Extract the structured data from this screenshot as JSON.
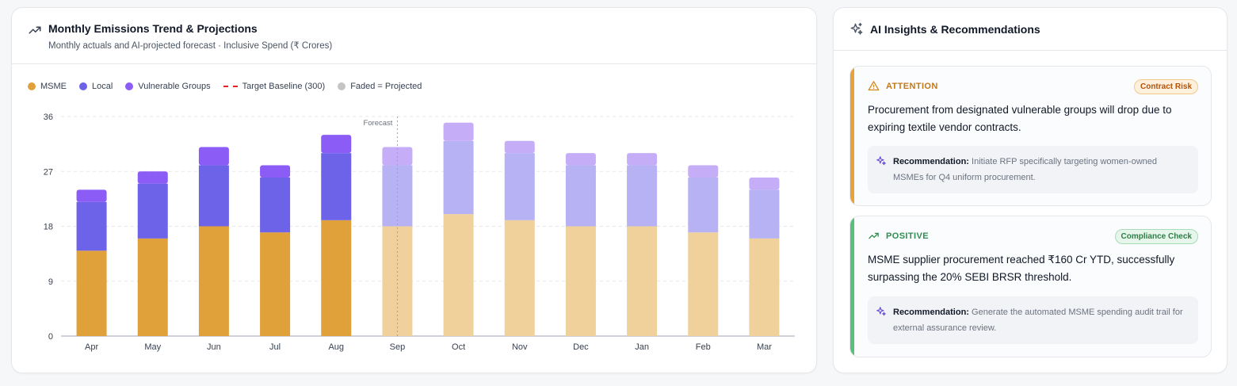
{
  "chart_card": {
    "title": "Monthly Emissions Trend & Projections",
    "subtitle": "Monthly actuals and AI-projected forecast · Inclusive Spend (₹ Crores)",
    "legend": [
      {
        "label": "MSME",
        "color": "#e0a03a"
      },
      {
        "label": "Local",
        "color": "#6d63e8"
      },
      {
        "label": "Vulnerable Groups",
        "color": "#8b5cf6"
      },
      {
        "label": "Target Baseline (300)",
        "color": "#dc2626"
      },
      {
        "label": "Faded = Projected",
        "color": "#c4c4c4"
      }
    ],
    "forecast_label": "Forecast"
  },
  "chart_data": {
    "type": "bar",
    "stacked": true,
    "categories": [
      "Apr",
      "May",
      "Jun",
      "Jul",
      "Aug",
      "Sep",
      "Oct",
      "Nov",
      "Dec",
      "Jan",
      "Feb",
      "Mar"
    ],
    "projected_from_index": 5,
    "series": [
      {
        "name": "MSME",
        "color": "#e0a03a",
        "faded_color": "#f0d19c",
        "values": [
          14,
          16,
          18,
          17,
          19,
          18,
          20,
          19,
          18,
          18,
          17,
          16
        ]
      },
      {
        "name": "Local",
        "color": "#6d63e8",
        "faded_color": "#b6b2f3",
        "values": [
          8,
          9,
          10,
          9,
          11,
          10,
          12,
          11,
          10,
          10,
          9,
          8
        ]
      },
      {
        "name": "Vulnerable Groups",
        "color": "#8b5cf6",
        "faded_color": "#c6adf7",
        "values": [
          2,
          2,
          3,
          2,
          3,
          3,
          3,
          2,
          2,
          2,
          2,
          2
        ]
      }
    ],
    "yticks": [
      0,
      9,
      18,
      27,
      36
    ],
    "ylim": [
      0,
      36
    ],
    "grid": true
  },
  "insights_card": {
    "title": "AI Insights & Recommendations",
    "items": [
      {
        "type": "ATTENTION",
        "badge": "Contract Risk",
        "text": "Procurement from designated vulnerable groups will drop due to expiring textile vendor contracts.",
        "rec_label": "Recommendation:",
        "rec_text": " Initiate RFP specifically targeting women-owned MSMEs for Q4 uniform procurement.",
        "accent": "#e8a23a"
      },
      {
        "type": "POSITIVE",
        "badge": "Compliance Check",
        "text": "MSME supplier procurement reached ₹160 Cr YTD, successfully surpassing the 20% SEBI BRSR threshold.",
        "rec_label": "Recommendation:",
        "rec_text": " Generate the automated MSME spending audit trail for external assurance review.",
        "accent": "#5bbf7c"
      }
    ]
  }
}
